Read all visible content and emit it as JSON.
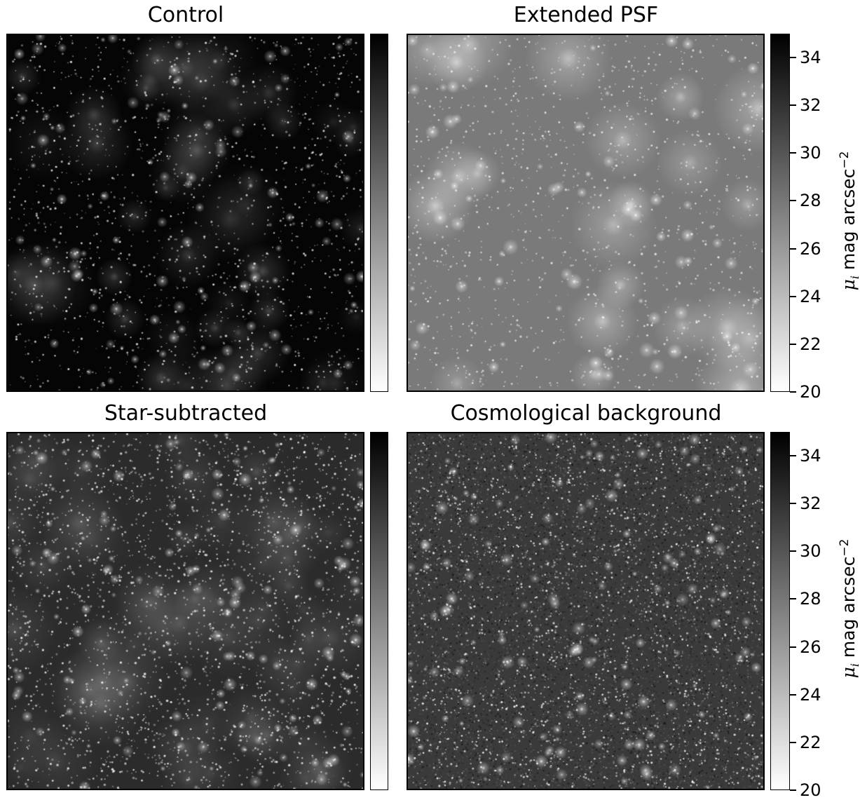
{
  "panels": [
    {
      "title": "Control",
      "style": "control"
    },
    {
      "title": "Extended PSF",
      "style": "psf"
    },
    {
      "title": "Star-subtracted",
      "style": "subtracted"
    },
    {
      "title": "Cosmological background",
      "style": "cosmo"
    }
  ],
  "colorbar": {
    "label_symbol": "μ",
    "label_subscript": "i",
    "label_text": "mag arcsec",
    "label_exponent": "−2",
    "ticks": [
      "34",
      "32",
      "30",
      "28",
      "26",
      "24",
      "22",
      "20"
    ],
    "range": [
      20,
      35
    ],
    "colormap": "gray_r"
  }
}
